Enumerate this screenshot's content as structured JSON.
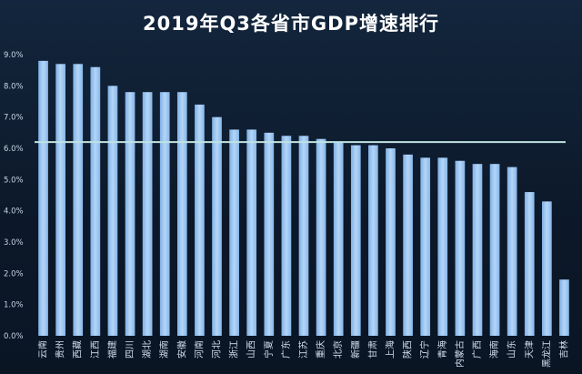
{
  "chart_data": {
    "type": "bar",
    "title": "2019年Q3各省市GDP增速排行",
    "xlabel": "",
    "ylabel": "",
    "ylim": [
      0,
      9
    ],
    "y_ticks": [
      "0.0%",
      "1.0%",
      "2.0%",
      "3.0%",
      "4.0%",
      "5.0%",
      "6.0%",
      "7.0%",
      "8.0%",
      "9.0%"
    ],
    "categories": [
      "云南",
      "贵州",
      "西藏",
      "江西",
      "福建",
      "四川",
      "湖北",
      "湖南",
      "安徽",
      "河南",
      "河北",
      "浙江",
      "山西",
      "宁夏",
      "广东",
      "江苏",
      "重庆",
      "北京",
      "新疆",
      "甘肃",
      "上海",
      "陕西",
      "辽宁",
      "青海",
      "内蒙古",
      "广西",
      "海南",
      "山东",
      "天津",
      "黑龙江",
      "吉林"
    ],
    "values": [
      8.8,
      8.7,
      8.7,
      8.6,
      8.0,
      7.8,
      7.8,
      7.8,
      7.8,
      7.4,
      7.0,
      6.6,
      6.6,
      6.5,
      6.4,
      6.4,
      6.3,
      6.2,
      6.1,
      6.1,
      6.0,
      5.8,
      5.7,
      5.7,
      5.6,
      5.5,
      5.5,
      5.4,
      4.6,
      4.3,
      1.8
    ],
    "reference_line": 6.2,
    "grid": false,
    "legend": "none",
    "colors": {
      "bar": "#9cc4f0",
      "reference_line": "#bfe3e0",
      "title": "#ffffff"
    }
  }
}
